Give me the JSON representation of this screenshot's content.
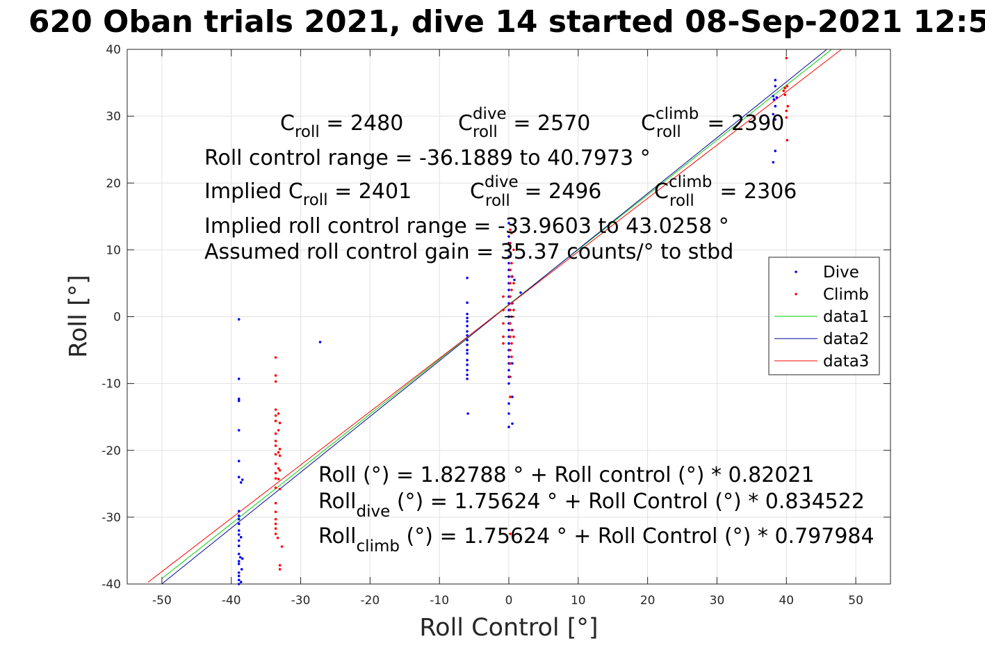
{
  "chart_data": {
    "type": "scatter",
    "title": "620 Oban trials 2021, dive 14 started 08-Sep-2021 12:5",
    "xlabel": "Roll Control [°]",
    "ylabel": "Roll [°]",
    "xlim": [
      -55,
      55
    ],
    "ylim": [
      -40,
      40
    ],
    "xticks": [
      -50,
      -40,
      -30,
      -20,
      -10,
      0,
      10,
      20,
      30,
      40,
      50
    ],
    "yticks": [
      -40,
      -30,
      -20,
      -10,
      0,
      10,
      20,
      30,
      40
    ],
    "grid": true,
    "legend_position": "right",
    "colors": {
      "dive": "#0000ff",
      "climb": "#ff0000",
      "data1": "#00cc00",
      "data2": "#000099",
      "data3": "#ff0000"
    },
    "legend": [
      "Dive",
      "Climb",
      "data1",
      "data2",
      "data3"
    ],
    "series": [
      {
        "name": "Dive",
        "kind": "points",
        "points": [
          [
            -38.9,
            -0.4
          ],
          [
            -38.9,
            -9.3
          ],
          [
            -38.9,
            -12.3
          ],
          [
            -38.9,
            -12.6
          ],
          [
            -38.9,
            -17
          ],
          [
            -38.9,
            -21.6
          ],
          [
            -38.9,
            -24
          ],
          [
            -38.6,
            -24.8
          ],
          [
            -38.4,
            -24.4
          ],
          [
            -38.9,
            -29.1
          ],
          [
            -38.9,
            -29.8
          ],
          [
            -38.9,
            -30.3
          ],
          [
            -38.9,
            -31
          ],
          [
            -38.9,
            -32
          ],
          [
            -38.9,
            -32.6
          ],
          [
            -38.6,
            -33
          ],
          [
            -38.9,
            -33.5
          ],
          [
            -38.9,
            -34.3
          ],
          [
            -38.9,
            -35.5
          ],
          [
            -38.7,
            -36
          ],
          [
            -38.4,
            -36.2
          ],
          [
            -38.9,
            -36.6
          ],
          [
            -38.9,
            -37
          ],
          [
            -38.5,
            -37.8
          ],
          [
            -38.9,
            -38.3
          ],
          [
            -38.9,
            -38.8
          ],
          [
            -38.9,
            -39.4
          ],
          [
            -38.6,
            -39.7
          ],
          [
            -38.9,
            -40
          ],
          [
            -27.2,
            -3.8
          ],
          [
            -6,
            5.8
          ],
          [
            -6,
            2.1
          ],
          [
            -6,
            0.4
          ],
          [
            -6,
            -0.2
          ],
          [
            -6,
            -0.7
          ],
          [
            -6,
            -1.4
          ],
          [
            -6,
            -2.2
          ],
          [
            -6,
            -2.8
          ],
          [
            -6,
            -3.5
          ],
          [
            -6,
            -4.2
          ],
          [
            -6,
            -5
          ],
          [
            -6,
            -5.5
          ],
          [
            -6,
            -6.5
          ],
          [
            -6,
            -7.2
          ],
          [
            -6,
            -8
          ],
          [
            -6,
            -8.7
          ],
          [
            -6,
            -9.3
          ],
          [
            -5.9,
            -14.5
          ],
          [
            0,
            14
          ],
          [
            0,
            12
          ],
          [
            0,
            11
          ],
          [
            0,
            10
          ],
          [
            0,
            9
          ],
          [
            0,
            8
          ],
          [
            0,
            7
          ],
          [
            0,
            6
          ],
          [
            0,
            5
          ],
          [
            0,
            4
          ],
          [
            0,
            3
          ],
          [
            0,
            2
          ],
          [
            0,
            1
          ],
          [
            0,
            0
          ],
          [
            0,
            -1
          ],
          [
            0,
            -2
          ],
          [
            0,
            -3
          ],
          [
            0,
            -4
          ],
          [
            0,
            -5
          ],
          [
            0,
            -6
          ],
          [
            0,
            -7
          ],
          [
            0,
            -8
          ],
          [
            0,
            -9
          ],
          [
            0,
            -10
          ],
          [
            0,
            -13
          ],
          [
            0,
            -14.5
          ],
          [
            0,
            -16.5
          ],
          [
            0.5,
            6
          ],
          [
            0.5,
            2
          ],
          [
            0.5,
            -2
          ],
          [
            0.5,
            -7
          ],
          [
            0.5,
            -12
          ],
          [
            0.5,
            -16
          ],
          [
            0.8,
            5.5
          ],
          [
            1.7,
            3.6
          ],
          [
            38.1,
            33
          ],
          [
            38.4,
            35.4
          ],
          [
            38.4,
            34.5
          ],
          [
            38.2,
            32.5
          ],
          [
            38.4,
            31.5
          ],
          [
            38.1,
            30.3
          ],
          [
            38.4,
            29.5
          ],
          [
            38.4,
            24.8
          ],
          [
            38.1,
            23.1
          ],
          [
            38.6,
            32.8
          ]
        ]
      },
      {
        "name": "Climb",
        "kind": "points",
        "points": [
          [
            -33.6,
            -6.1
          ],
          [
            -33.6,
            -8.8
          ],
          [
            -33.6,
            -9.7
          ],
          [
            -33.6,
            -13.9
          ],
          [
            -33.6,
            -14.8
          ],
          [
            -33.6,
            -15.6
          ],
          [
            -33.6,
            -17.5
          ],
          [
            -33.6,
            -18.6
          ],
          [
            -33.6,
            -19.3
          ],
          [
            -33.6,
            -20.6
          ],
          [
            -33.6,
            -22
          ],
          [
            -33.6,
            -23.4
          ],
          [
            -33.6,
            -24.2
          ],
          [
            -33.6,
            -25.6
          ],
          [
            -33.6,
            -27.9
          ],
          [
            -33.6,
            -29.2
          ],
          [
            -33.6,
            -30.3
          ],
          [
            -33.6,
            -31
          ],
          [
            -33.6,
            -31.7
          ],
          [
            -33.6,
            -32.5
          ],
          [
            -33.3,
            -33.1
          ],
          [
            -33.2,
            -14.5
          ],
          [
            -33.2,
            -17
          ],
          [
            -33.2,
            -20.3
          ],
          [
            -33.2,
            -22.7
          ],
          [
            -33.2,
            -24.3
          ],
          [
            -33,
            -15.9
          ],
          [
            -33,
            -19.8
          ],
          [
            -33,
            -20.8
          ],
          [
            -33,
            -23
          ],
          [
            -33,
            -25.8
          ],
          [
            -33,
            -37.2
          ],
          [
            -33,
            -37.8
          ],
          [
            -32.7,
            -34.4
          ],
          [
            -0.8,
            3
          ],
          [
            -0.8,
            1
          ],
          [
            -0.8,
            -1
          ],
          [
            -0.8,
            -3
          ],
          [
            -0.8,
            -4
          ],
          [
            0.2,
            13
          ],
          [
            0.2,
            11
          ],
          [
            0.2,
            9
          ],
          [
            0.2,
            7
          ],
          [
            0.2,
            5
          ],
          [
            0.2,
            3
          ],
          [
            0.2,
            1
          ],
          [
            0.2,
            -1
          ],
          [
            0.2,
            -3
          ],
          [
            0.2,
            -5
          ],
          [
            0.2,
            -7
          ],
          [
            0.2,
            -9
          ],
          [
            0.2,
            -12
          ],
          [
            0.2,
            -32.5
          ],
          [
            0.4,
            12.5
          ],
          [
            0.4,
            8
          ],
          [
            0.4,
            6
          ],
          [
            0.4,
            4
          ],
          [
            0.4,
            2
          ],
          [
            0.4,
            0
          ],
          [
            0.4,
            -2
          ],
          [
            0.4,
            -4
          ],
          [
            0.4,
            -6
          ],
          [
            0.7,
            10
          ],
          [
            0.7,
            5
          ],
          [
            0.7,
            1
          ],
          [
            0.7,
            -3
          ],
          [
            39.6,
            33.8
          ],
          [
            39.8,
            34.2
          ],
          [
            40,
            38.7
          ],
          [
            40.1,
            34.5
          ],
          [
            40,
            30.8
          ],
          [
            40,
            29.8
          ],
          [
            40.1,
            26.4
          ],
          [
            39.8,
            33.2
          ],
          [
            40.2,
            31.5
          ]
        ]
      },
      {
        "name": "data1",
        "kind": "line",
        "x": [
          -50,
          46.5
        ],
        "y": [
          -39.18,
          39.97
        ]
      },
      {
        "name": "data2",
        "kind": "line",
        "x": [
          -50,
          45.8
        ],
        "y": [
          -39.97,
          39.97
        ]
      },
      {
        "name": "data3",
        "kind": "line",
        "x": [
          -52,
          47.9
        ],
        "y": [
          -39.74,
          39.97
        ]
      }
    ],
    "annotations": {
      "c_roll": {
        "main": "C",
        "sub": "roll",
        "rest": " = 2480"
      },
      "c_roll_dive": {
        "main": "C",
        "sup": "dive",
        "sub": "roll",
        "rest": " = 2570"
      },
      "c_roll_climb": {
        "main": "C",
        "sup": "climb",
        "sub": "roll",
        "rest": " = 2390"
      },
      "range": "Roll control range = -36.1889 to 40.7973 °",
      "implied_c_roll": {
        "main": "Implied C",
        "sub": "roll",
        "rest": " = 2401"
      },
      "implied_c_roll_dive": {
        "main": "C",
        "sup": "dive",
        "sub": "roll",
        "rest": " = 2496"
      },
      "implied_c_roll_climb": {
        "main": "C",
        "sup": "climb",
        "sub": "roll",
        "rest": " = 2306"
      },
      "implied_range": "Implied roll control range = -33.9603 to 43.0258 °",
      "gain": "Assumed roll control gain = 35.37 counts/° to stbd",
      "fit_all": "Roll (°) = 1.82788 ° + Roll control (°) * 0.82021",
      "fit_dive": {
        "main": "Roll",
        "sub": "dive",
        "rest": " (°) = 1.75624 ° + Roll Control (°) * 0.834522"
      },
      "fit_climb": {
        "main": "Roll",
        "sub": "climb",
        "rest": " (°) = 1.75624 ° + Roll Control (°) * 0.797984"
      }
    }
  }
}
